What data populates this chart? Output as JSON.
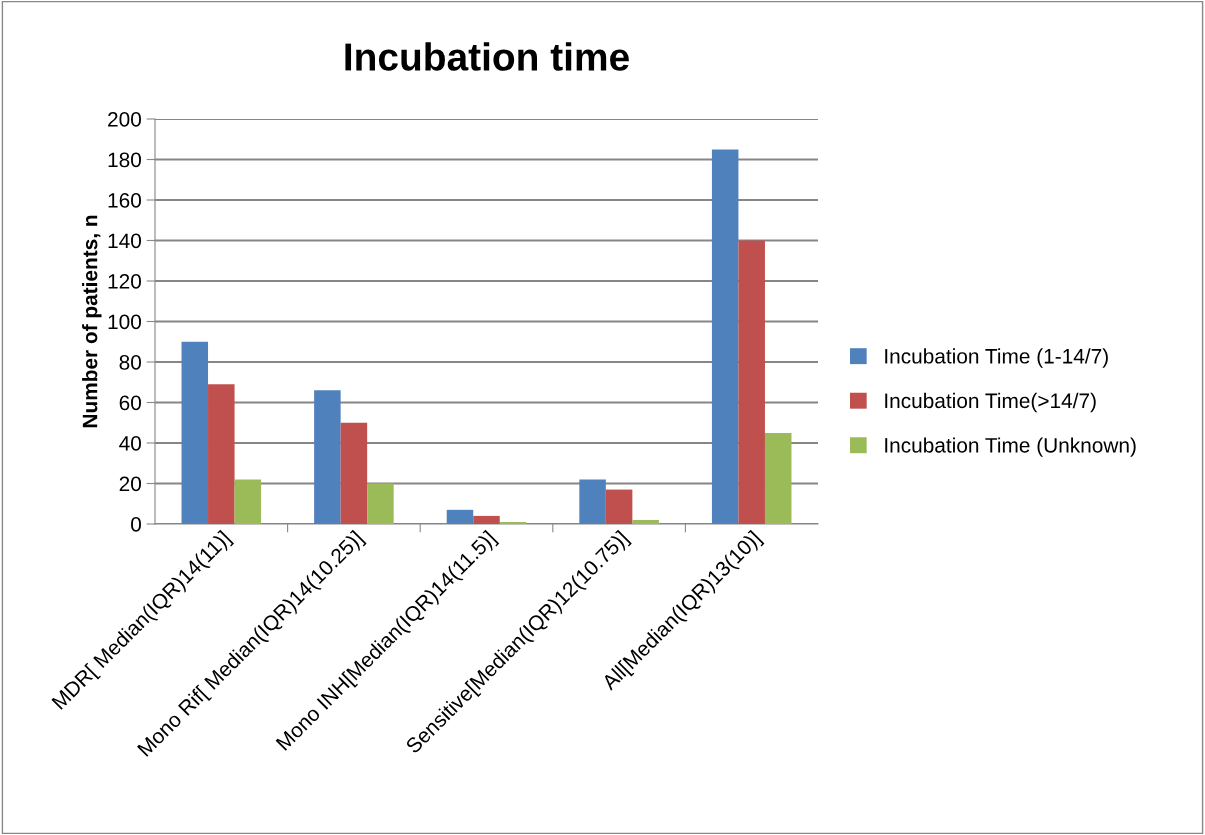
{
  "chart_data": {
    "type": "bar",
    "title": "Incubation time",
    "ylabel": "Number of patients, n",
    "categories": [
      "MDR[ Median(IQR)14(11)]",
      "Mono Rif[ Median(IQR)14(10.25)]",
      "Mono INH[Median(IQR)14(11.5)]",
      "Sensitive[Median(IQR)12(10.75)]",
      "All[Median(IQR)13(10)]"
    ],
    "series": [
      {
        "name": "Incubation Time (1-14/7)",
        "color": "#4f81bd",
        "values": [
          90,
          66,
          7,
          22,
          185
        ]
      },
      {
        "name": "Incubation Time(>14/7)",
        "color": "#c0504d",
        "values": [
          69,
          50,
          4,
          17,
          140
        ]
      },
      {
        "name": "Incubation Time (Unknown)",
        "color": "#9bbb59",
        "values": [
          22,
          20,
          1,
          2,
          45
        ]
      }
    ],
    "ylim": [
      0,
      200
    ],
    "yticks": [
      0,
      20,
      40,
      60,
      80,
      100,
      120,
      140,
      160,
      180,
      200
    ],
    "grid": "y",
    "legend": "right"
  }
}
